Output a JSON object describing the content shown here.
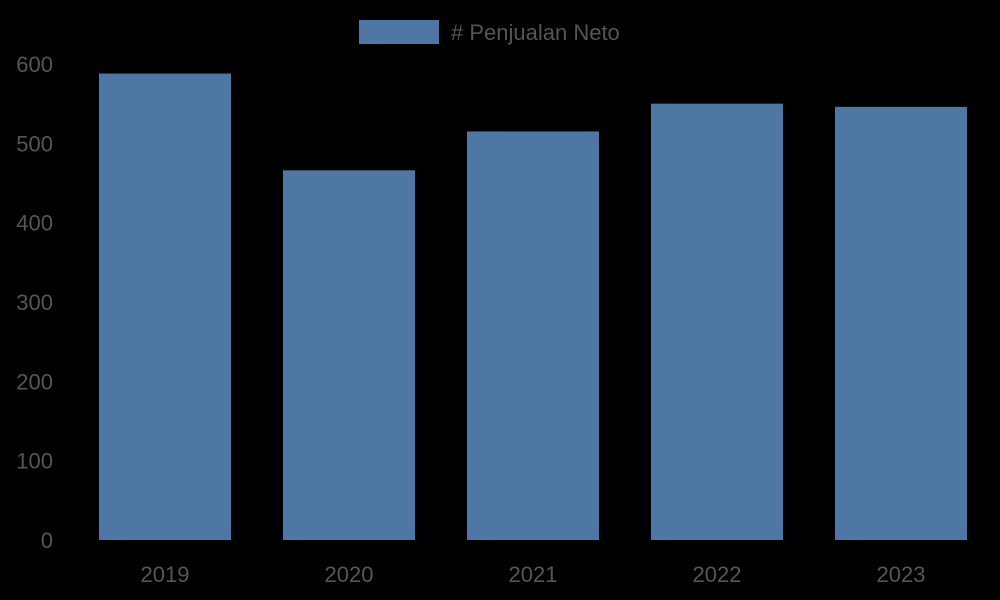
{
  "chart_data": {
    "type": "bar",
    "categories": [
      "2019",
      "2020",
      "2021",
      "2022",
      "2023"
    ],
    "series": [
      {
        "name": "# Penjualan Neto",
        "values": [
          588,
          466,
          515,
          550,
          546
        ]
      }
    ],
    "ylim": [
      0,
      600
    ],
    "yticks": [
      "0",
      "100",
      "200",
      "300",
      "400",
      "500",
      "600"
    ],
    "grid": false,
    "legend_position": "top-center",
    "colors": {
      "background": "#000000",
      "bar": "#4e77a5",
      "text": "#555555"
    }
  }
}
